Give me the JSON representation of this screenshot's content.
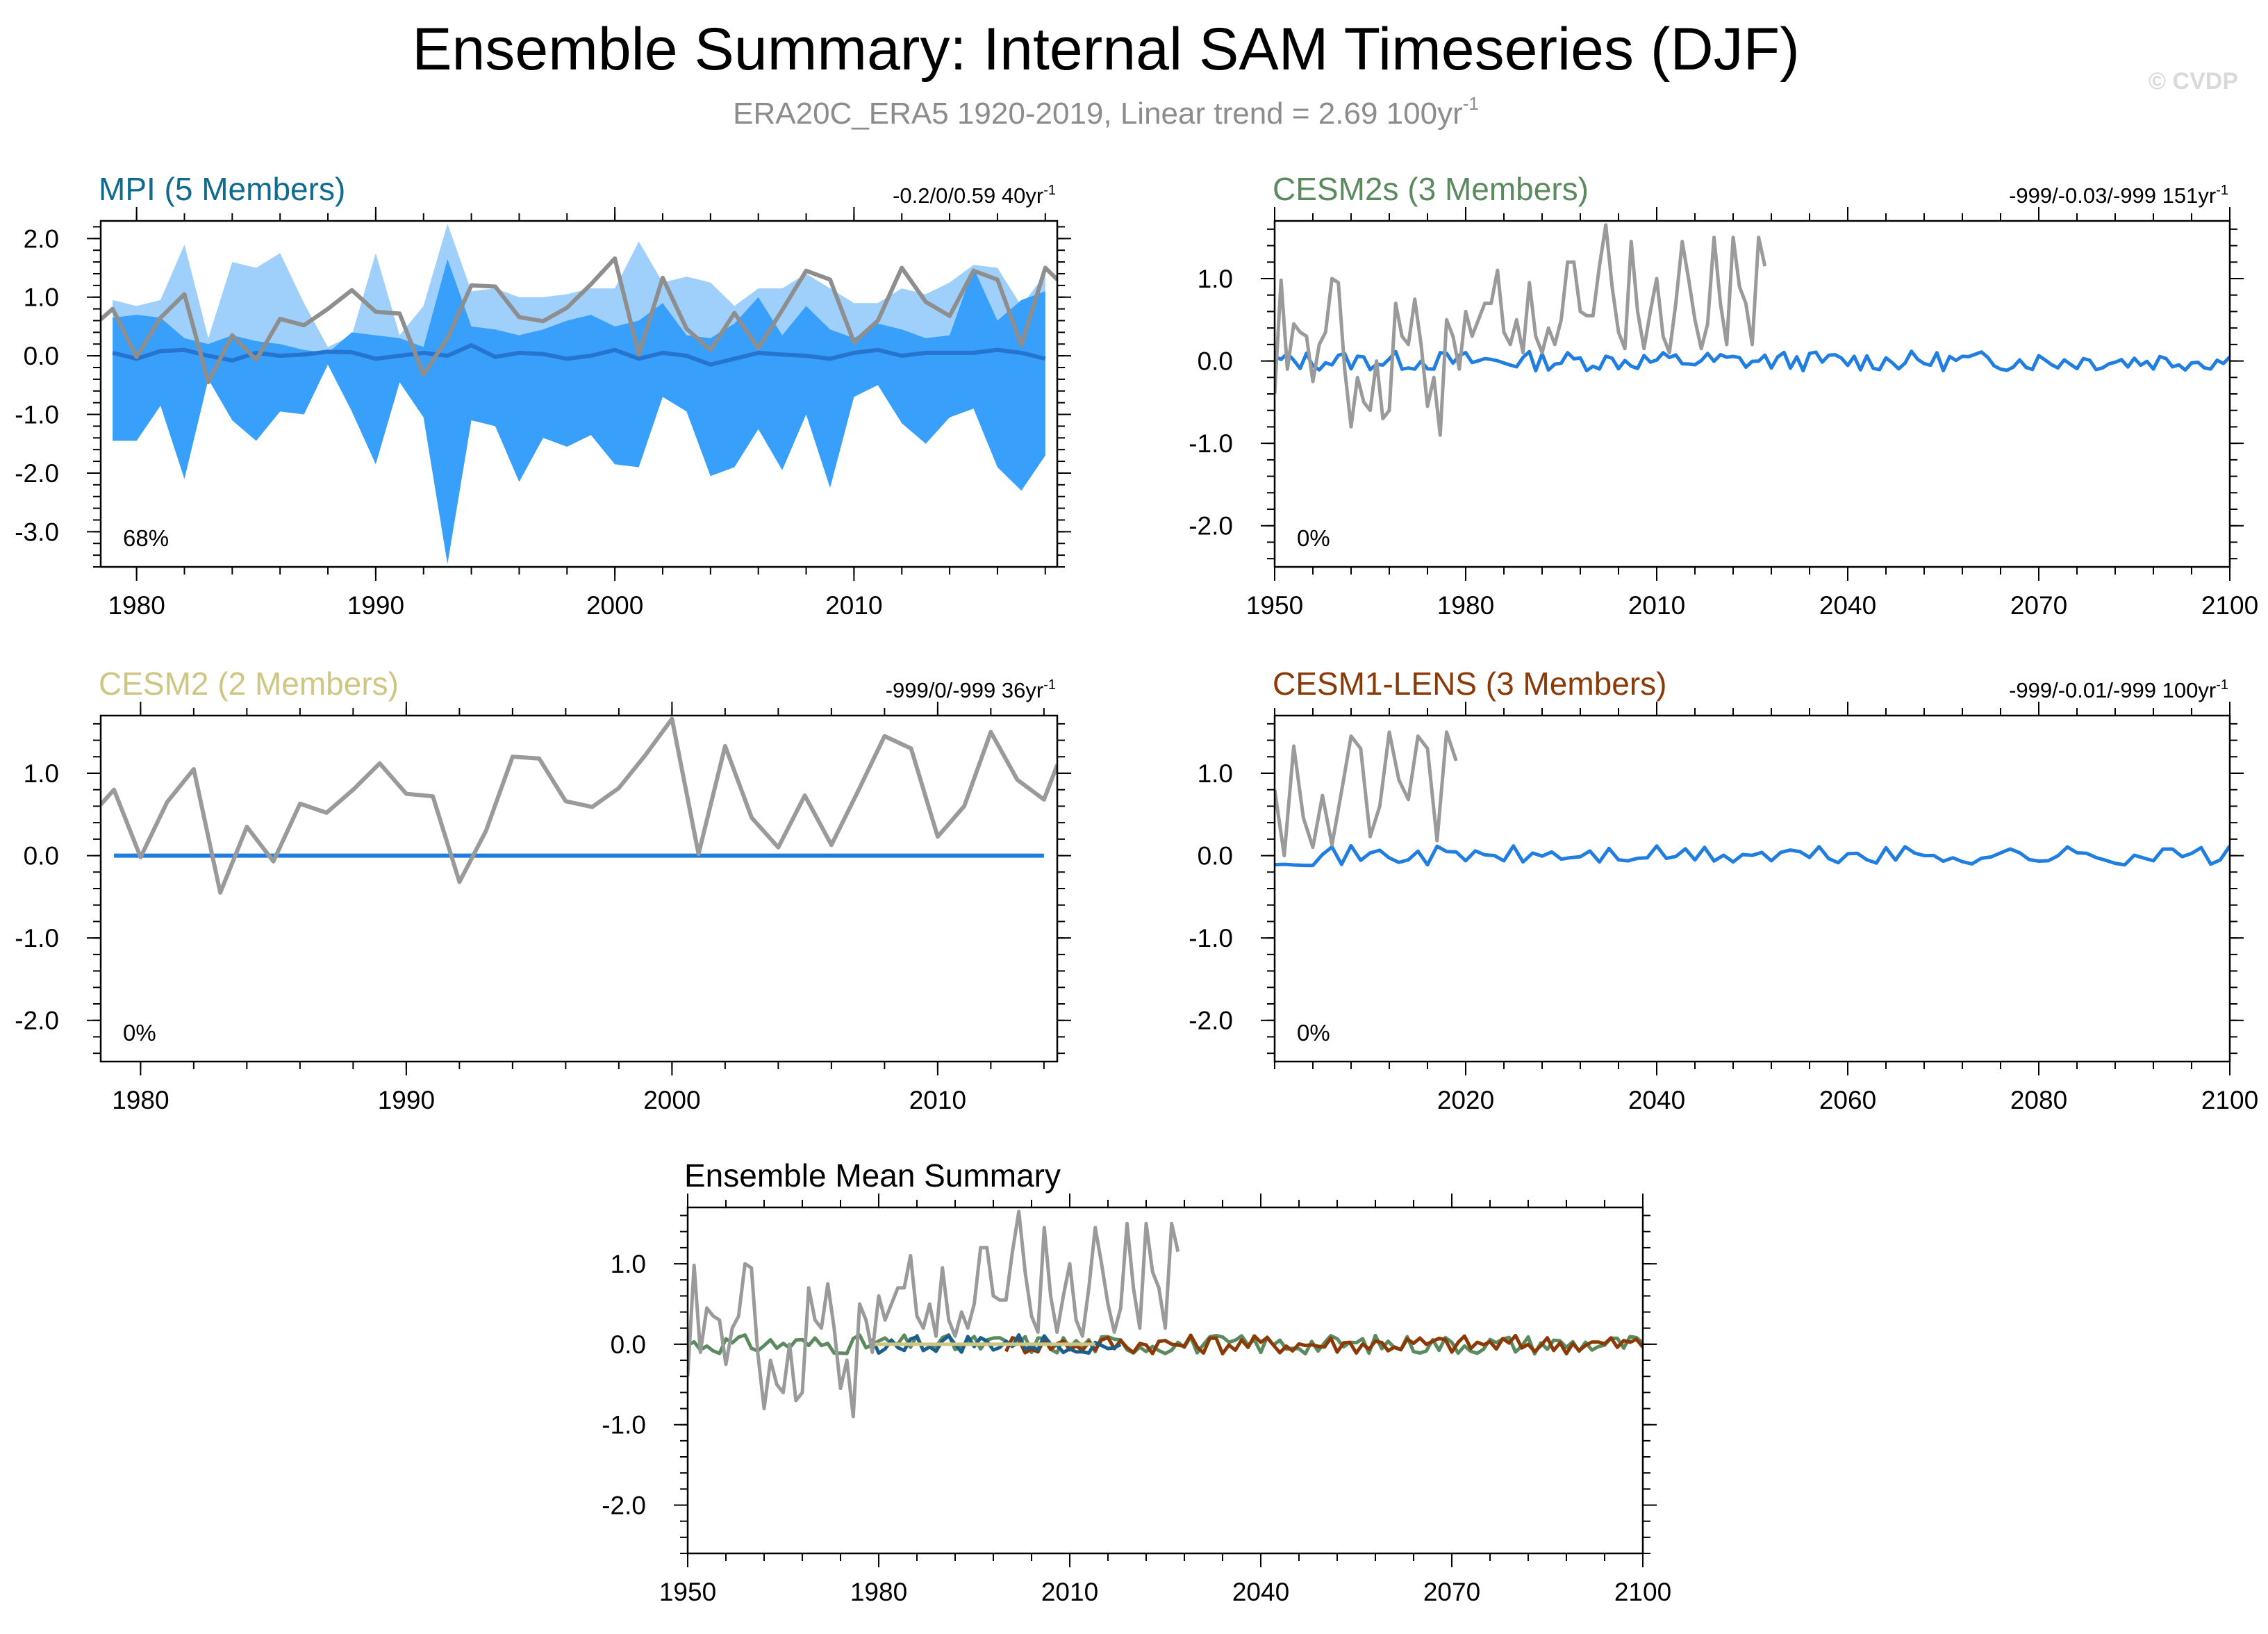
{
  "figure": {
    "title": "Ensemble Summary: Internal SAM Timeseries (DJF)",
    "subtitle_main": "ERA20C_ERA5 1920-2019, Linear trend = 2.69 100yr",
    "subtitle_sup": "-1",
    "watermark": "© CVDP"
  },
  "colors": {
    "obs": "#9a9a9a",
    "ens_mean": "#1f7ee0",
    "spread_outer": "#9fd0fb",
    "spread_inner": "#38a0fa",
    "mpi_title": "#0f6b8f",
    "cesm2s_title": "#5b8a5f",
    "cesm2_title": "#cfc683",
    "lens_title": "#8b3a07",
    "mpi_line": "#1a5f8c"
  },
  "chart_data": [
    {
      "id": "mpi",
      "type": "line",
      "title": "MPI (5 Members)",
      "stat_main": "-0.2/0/0.59 40yr",
      "stat_sup": "-1",
      "percent_label": "68%",
      "xlim": [
        1978.5,
        2018.5
      ],
      "ylim": [
        -3.6,
        2.3
      ],
      "xticks": [
        1980,
        1990,
        2000,
        2010
      ],
      "xtick_labels": [
        "1980",
        "1990",
        "2000",
        "2010"
      ],
      "yticks": [
        2.0,
        1.0,
        0.0,
        -1.0,
        -2.0,
        -3.0
      ],
      "ytick_labels": [
        "2.0",
        "1.0",
        "0.0",
        "-1.0",
        "-2.0",
        "-3.0"
      ],
      "x": [
        1979,
        1980,
        1981,
        1982,
        1983,
        1984,
        1985,
        1986,
        1987,
        1988,
        1989,
        1990,
        1991,
        1992,
        1993,
        1994,
        1995,
        1996,
        1997,
        1998,
        1999,
        2000,
        2001,
        2002,
        2003,
        2004,
        2005,
        2006,
        2007,
        2008,
        2009,
        2010,
        2011,
        2012,
        2013,
        2014,
        2015,
        2016,
        2017,
        2018
      ],
      "spread_outer_upper": [
        0.95,
        0.85,
        0.95,
        1.9,
        0.3,
        1.6,
        1.5,
        1.75,
        0.9,
        0.15,
        0.35,
        1.75,
        0.35,
        0.85,
        2.25,
        1.1,
        1.15,
        1.0,
        1.0,
        1.05,
        1.15,
        1.15,
        1.95,
        1.25,
        1.35,
        1.25,
        0.85,
        1.15,
        1.15,
        1.4,
        1.15,
        0.9,
        0.9,
        1.15,
        1.05,
        1.25,
        1.55,
        1.5,
        0.85,
        1.4
      ],
      "spread_inner_upper": [
        0.65,
        0.7,
        0.65,
        0.3,
        0.2,
        0.35,
        0.25,
        0.2,
        0.1,
        0.05,
        0.4,
        0.35,
        0.3,
        0.15,
        1.65,
        0.5,
        0.45,
        0.35,
        0.45,
        0.6,
        0.7,
        0.5,
        0.6,
        0.9,
        0.35,
        0.3,
        0.55,
        1.0,
        0.35,
        0.85,
        0.45,
        0.3,
        0.55,
        0.45,
        0.3,
        0.35,
        1.5,
        0.6,
        0.95,
        1.1
      ],
      "spread_inner_lower": [
        -0.5,
        -0.3,
        -0.4,
        -0.5,
        -0.2,
        -0.4,
        -0.6,
        -0.4,
        -0.5,
        -0.3,
        -0.3,
        -0.5,
        -0.4,
        -0.5,
        -0.6,
        -0.5,
        -0.6,
        -0.4,
        -0.5,
        -0.3,
        -0.4,
        -0.3,
        -0.4,
        -0.4,
        -0.6,
        -0.5,
        -0.4,
        -0.5,
        -0.3,
        -0.4,
        -0.5,
        -0.4,
        -0.5,
        -0.3,
        -0.4,
        -0.5,
        -0.4,
        -0.3,
        -0.5,
        -0.4
      ],
      "spread_outer_lower": [
        -1.45,
        -1.45,
        -0.85,
        -2.1,
        -0.4,
        -1.1,
        -1.45,
        -0.95,
        -1.0,
        -0.15,
        -0.95,
        -1.85,
        -0.45,
        -1.05,
        -3.55,
        -1.1,
        -1.2,
        -2.15,
        -1.4,
        -1.55,
        -1.35,
        -1.85,
        -1.9,
        -0.7,
        -0.95,
        -2.05,
        -1.9,
        -1.25,
        -1.95,
        -1.0,
        -2.25,
        -0.7,
        -0.5,
        -1.15,
        -1.5,
        -1.05,
        -0.9,
        -1.9,
        -2.3,
        -1.7
      ],
      "obs_x": [
        1978.5,
        1979,
        1980,
        1981,
        1982,
        1983,
        1984,
        1985,
        1986,
        1987,
        1988,
        1989,
        1990,
        1991,
        1992,
        1993,
        1994,
        1995,
        1996,
        1997,
        1998,
        1999,
        2000,
        2001,
        2002,
        2003,
        2004,
        2005,
        2006,
        2007,
        2008,
        2009,
        2010,
        2011,
        2012,
        2013,
        2014,
        2015,
        2016,
        2017,
        2018,
        2018.5
      ],
      "obs": [
        0.62,
        0.8,
        -0.02,
        0.65,
        1.05,
        -0.45,
        0.35,
        -0.07,
        0.63,
        0.52,
        0.8,
        1.12,
        0.75,
        0.72,
        -0.32,
        0.3,
        1.2,
        1.18,
        0.66,
        0.59,
        0.82,
        1.22,
        1.66,
        0.02,
        1.33,
        0.46,
        0.1,
        0.73,
        0.13,
        0.78,
        1.45,
        1.3,
        0.23,
        0.6,
        1.5,
        0.92,
        0.68,
        1.45,
        1.3,
        0.18,
        1.5,
        1.3
      ],
      "ens_mean": [
        0.05,
        -0.05,
        0.08,
        0.1,
        0.0,
        -0.08,
        0.05,
        0.0,
        0.02,
        0.07,
        0.06,
        -0.05,
        0.0,
        0.05,
        0.0,
        0.18,
        -0.02,
        0.05,
        0.03,
        -0.05,
        0.0,
        0.1,
        -0.05,
        0.05,
        0.0,
        -0.15,
        -0.05,
        0.05,
        0.02,
        0.0,
        -0.05,
        0.05,
        0.1,
        0.0,
        0.05,
        0.05,
        0.05,
        0.1,
        0.05,
        -0.05
      ]
    },
    {
      "id": "cesm2s",
      "type": "line",
      "title": "CESM2s (3 Members)",
      "stat_main": "-999/-0.03/-999 151yr",
      "stat_sup": "-1",
      "percent_label": "0%",
      "xlim": [
        1950,
        2100
      ],
      "ylim": [
        -2.5,
        1.7
      ],
      "xticks": [
        1950,
        1980,
        2010,
        2040,
        2070,
        2100
      ],
      "xtick_labels": [
        "1950",
        "1980",
        "2010",
        "2040",
        "2070",
        "2100"
      ],
      "yticks": [
        1.0,
        0.0,
        -1.0,
        -2.0
      ],
      "ytick_labels": [
        "1.0",
        "0.0",
        "-1.0",
        "-2.0"
      ],
      "obs_start": 1950,
      "obs": [
        -0.4,
        0.98,
        -0.1,
        0.45,
        0.35,
        0.3,
        -0.25,
        0.2,
        0.35,
        1.0,
        0.95,
        -0.1,
        -0.8,
        -0.2,
        -0.5,
        -0.6,
        0.0,
        -0.7,
        -0.6,
        0.7,
        0.3,
        0.2,
        0.75,
        0.2,
        -0.55,
        -0.2,
        -0.9,
        0.5,
        0.3,
        -0.1,
        0.6,
        0.3,
        0.5,
        0.7,
        0.7,
        1.1,
        0.35,
        0.2,
        0.5,
        0.1,
        0.95,
        0.3,
        0.1,
        0.4,
        0.2,
        0.5,
        1.2,
        1.2,
        0.6,
        0.55,
        0.55,
        1.15,
        1.65,
        0.9,
        0.35,
        0.15,
        1.45,
        0.6,
        0.15,
        0.6,
        1.0,
        0.3,
        0.1,
        0.7,
        1.45,
        1.0,
        0.5,
        0.15,
        0.45,
        1.5,
        0.7,
        0.2,
        1.5,
        0.9,
        0.7,
        0.2,
        1.5,
        1.15
      ],
      "mean_start": 1950
    },
    {
      "id": "cesm2",
      "type": "line",
      "title": "CESM2 (2 Members)",
      "stat_main": "-999/0/-999 36yr",
      "stat_sup": "-1",
      "percent_label": "0%",
      "xlim": [
        1978.5,
        2014.5
      ],
      "ylim": [
        -2.5,
        1.7
      ],
      "xticks": [
        1980,
        1990,
        2000,
        2010
      ],
      "xtick_labels": [
        "1980",
        "1990",
        "2000",
        "2010"
      ],
      "yticks": [
        1.0,
        0.0,
        -1.0,
        -2.0
      ],
      "ytick_labels": [
        "1.0",
        "0.0",
        "-1.0",
        "-2.0"
      ],
      "obs_x": [
        1978.5,
        1979,
        1980,
        1981,
        1982,
        1983,
        1984,
        1985,
        1986,
        1987,
        1988,
        1989,
        1990,
        1991,
        1992,
        1993,
        1994,
        1995,
        1996,
        1997,
        1998,
        1999,
        2000,
        2001,
        2002,
        2003,
        2004,
        2005,
        2006,
        2007,
        2008,
        2009,
        2010,
        2011,
        2012,
        2013,
        2014,
        2014.5
      ],
      "obs": [
        0.62,
        0.8,
        -0.02,
        0.65,
        1.05,
        -0.45,
        0.35,
        -0.07,
        0.63,
        0.52,
        0.8,
        1.12,
        0.75,
        0.72,
        -0.32,
        0.3,
        1.2,
        1.18,
        0.66,
        0.59,
        0.82,
        1.22,
        1.66,
        0.02,
        1.33,
        0.46,
        0.1,
        0.73,
        0.13,
        0.78,
        1.45,
        1.3,
        0.23,
        0.6,
        1.5,
        0.92,
        0.68,
        1.1
      ],
      "mean_x": [
        1979,
        2014
      ],
      "ens_mean": [
        0.0,
        0.0
      ]
    },
    {
      "id": "lens",
      "type": "line",
      "title": "CESM1-LENS (3 Members)",
      "stat_main": "-999/-0.01/-999 100yr",
      "stat_sup": "-1",
      "percent_label": "0%",
      "xlim": [
        2000,
        2100
      ],
      "ylim": [
        -2.5,
        1.7
      ],
      "xticks": [
        2020,
        2040,
        2060,
        2080,
        2100
      ],
      "xtick_labels": [
        "2020",
        "2040",
        "2060",
        "2080",
        "2100"
      ],
      "yticks": [
        1.0,
        0.0,
        -1.0,
        -2.0
      ],
      "ytick_labels": [
        "1.0",
        "0.0",
        "-1.0",
        "-2.0"
      ],
      "obs_start": 2000,
      "obs": [
        0.8,
        0.0,
        1.33,
        0.46,
        0.1,
        0.73,
        0.13,
        0.78,
        1.45,
        1.3,
        0.23,
        0.6,
        1.5,
        0.92,
        0.68,
        1.45,
        1.3,
        0.18,
        1.5,
        1.15
      ],
      "mean_start": 2000
    },
    {
      "id": "summary",
      "type": "line",
      "title": "Ensemble Mean Summary",
      "xlim": [
        1950,
        2100
      ],
      "ylim": [
        -2.6,
        1.7
      ],
      "xticks": [
        1950,
        1980,
        2010,
        2040,
        2070,
        2100
      ],
      "xtick_labels": [
        "1950",
        "1980",
        "2010",
        "2040",
        "2070",
        "2100"
      ],
      "yticks": [
        1.0,
        0.0,
        -1.0,
        -2.0
      ],
      "ytick_labels": [
        "1.0",
        "0.0",
        "-1.0",
        "-2.0"
      ],
      "obs_start": 1950,
      "obs": [
        -0.4,
        0.98,
        -0.1,
        0.45,
        0.35,
        0.3,
        -0.25,
        0.2,
        0.35,
        1.0,
        0.95,
        -0.1,
        -0.8,
        -0.2,
        -0.5,
        -0.6,
        0.0,
        -0.7,
        -0.6,
        0.7,
        0.3,
        0.2,
        0.75,
        0.2,
        -0.55,
        -0.2,
        -0.9,
        0.5,
        0.3,
        -0.1,
        0.6,
        0.3,
        0.5,
        0.7,
        0.7,
        1.1,
        0.35,
        0.2,
        0.5,
        0.1,
        0.95,
        0.3,
        0.1,
        0.4,
        0.2,
        0.5,
        1.2,
        1.2,
        0.6,
        0.55,
        0.55,
        1.15,
        1.65,
        0.9,
        0.35,
        0.15,
        1.45,
        0.6,
        0.15,
        0.6,
        1.0,
        0.3,
        0.1,
        0.7,
        1.45,
        1.0,
        0.5,
        0.15,
        0.45,
        1.5,
        0.7,
        0.2,
        1.5,
        0.9,
        0.7,
        0.2,
        1.5,
        1.15
      ],
      "series": [
        {
          "name": "CESM2s",
          "color_key": "cesm2s_title",
          "start": 1950,
          "end": 2100
        },
        {
          "name": "CESM1-LENS",
          "color_key": "lens_title",
          "start": 2000,
          "end": 2100
        },
        {
          "name": "MPI",
          "color_key": "mpi_line",
          "start": 1979,
          "end": 2018
        },
        {
          "name": "CESM2",
          "color_key": "cesm2_title",
          "start": 1979,
          "end": 2014
        }
      ]
    }
  ]
}
